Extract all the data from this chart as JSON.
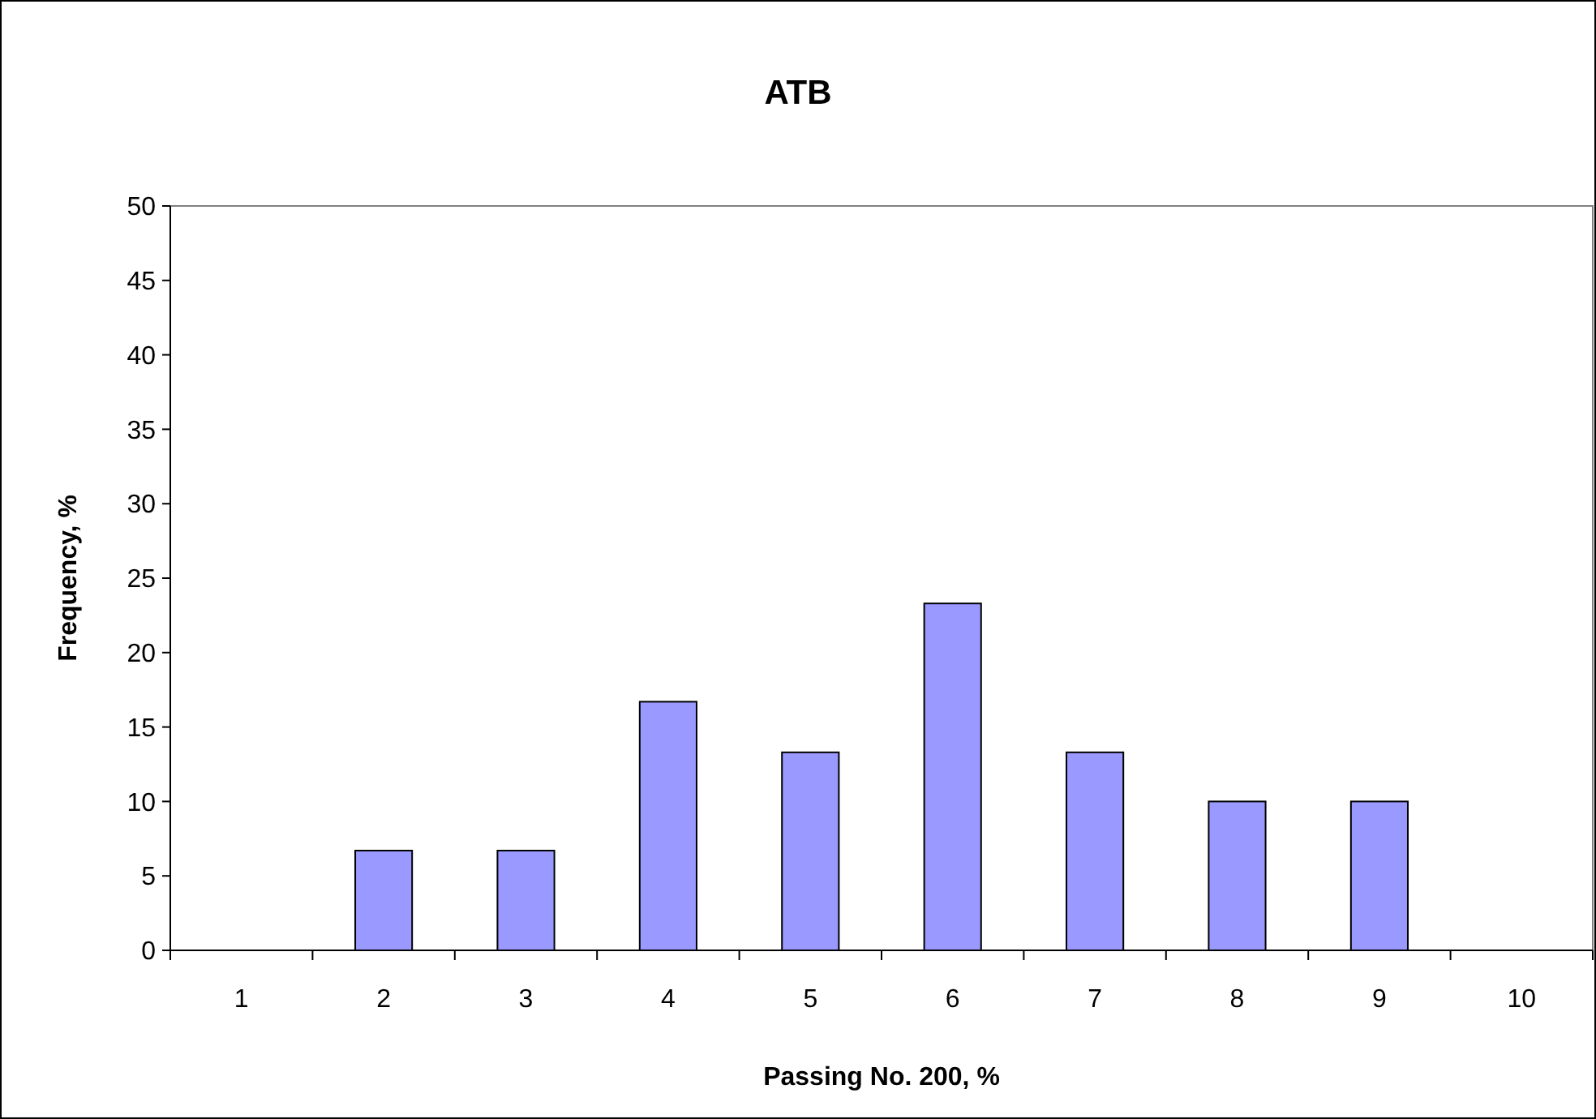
{
  "chart_data": {
    "type": "bar",
    "title": "ATB",
    "xlabel": "Passing No. 200, %",
    "ylabel": "Frequency, %",
    "categories": [
      "1",
      "2",
      "3",
      "4",
      "5",
      "6",
      "7",
      "8",
      "9",
      "10"
    ],
    "values": [
      0,
      6.7,
      6.7,
      16.7,
      13.3,
      23.3,
      13.3,
      10,
      10,
      0
    ],
    "color": "#9999ff",
    "ylim": [
      0,
      50
    ],
    "yticks": [
      0,
      5,
      10,
      15,
      20,
      25,
      30,
      35,
      40,
      45,
      50
    ],
    "grid": false
  }
}
